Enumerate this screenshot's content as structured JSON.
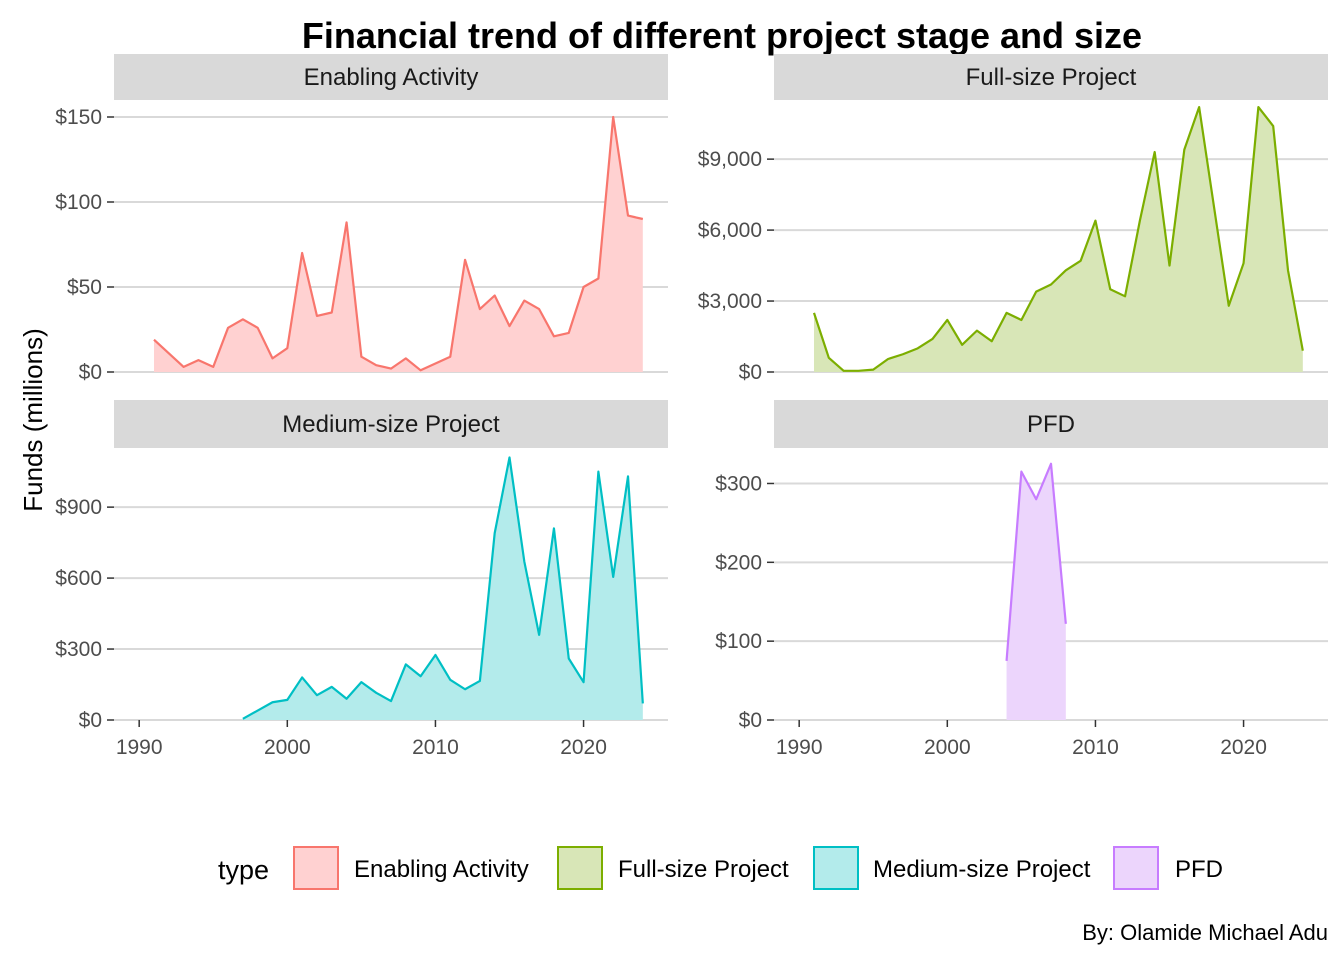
{
  "chart_data": {
    "type": "area",
    "title": "Financial trend of different project stage and size",
    "ylabel": "Funds (millions)",
    "caption": "By: Olamide Michael Adu",
    "legend_title": "type",
    "legend_position": "bottom",
    "grid": true,
    "x_ticks": [
      1990,
      2000,
      2010,
      2020
    ],
    "panels": [
      {
        "name": "Enabling Activity",
        "fill": "#ffd1d1",
        "line": "#f8766d",
        "ylim": [
          0,
          160
        ],
        "y_ticks": [
          0,
          50,
          100,
          150
        ],
        "y_tick_labels": [
          "$0",
          "$50",
          "$100",
          "$150"
        ],
        "x": [
          1991,
          1992,
          1993,
          1994,
          1995,
          1996,
          1997,
          1998,
          1999,
          2000,
          2001,
          2002,
          2003,
          2004,
          2005,
          2006,
          2007,
          2008,
          2009,
          2010,
          2011,
          2012,
          2013,
          2014,
          2015,
          2016,
          2017,
          2018,
          2019,
          2020,
          2021,
          2022,
          2023,
          2024
        ],
        "values": [
          19,
          11,
          3,
          7,
          3,
          26,
          31,
          26,
          8,
          14,
          70,
          33,
          35,
          88,
          9,
          4,
          2,
          8,
          1,
          5,
          9,
          66,
          37,
          45,
          27,
          42,
          37,
          21,
          23,
          50,
          55,
          150,
          92,
          90
        ]
      },
      {
        "name": "Full-size Project",
        "fill": "#d8e6b7",
        "line": "#7cae00",
        "ylim": [
          0,
          11500
        ],
        "y_ticks": [
          0,
          3000,
          6000,
          9000
        ],
        "y_tick_labels": [
          "$0",
          "$3,000",
          "$6,000",
          "$9,000"
        ],
        "x": [
          1991,
          1992,
          1993,
          1994,
          1995,
          1996,
          1997,
          1998,
          1999,
          2000,
          2001,
          2002,
          2003,
          2004,
          2005,
          2006,
          2007,
          2008,
          2009,
          2010,
          2011,
          2012,
          2013,
          2014,
          2015,
          2016,
          2017,
          2018,
          2019,
          2020,
          2021,
          2022,
          2023,
          2024
        ],
        "values": [
          2500,
          600,
          50,
          50,
          100,
          550,
          750,
          1000,
          1400,
          2200,
          1150,
          1750,
          1300,
          2500,
          2200,
          3400,
          3700,
          4300,
          4700,
          6400,
          3500,
          3200,
          6400,
          9300,
          4500,
          9400,
          11200,
          7000,
          2800,
          4600,
          11200,
          10400,
          4300,
          900
        ]
      },
      {
        "name": "Medium-size Project",
        "fill": "#b3ebeb",
        "line": "#00bfc4",
        "ylim": [
          0,
          1150
        ],
        "y_ticks": [
          0,
          300,
          600,
          900
        ],
        "y_tick_labels": [
          "$0",
          "$300",
          "$600",
          "$900"
        ],
        "x": [
          1997,
          1998,
          1999,
          2000,
          2001,
          2002,
          2003,
          2004,
          2005,
          2006,
          2007,
          2008,
          2009,
          2010,
          2011,
          2012,
          2013,
          2014,
          2015,
          2016,
          2017,
          2018,
          2019,
          2020,
          2021,
          2022,
          2023,
          2024
        ],
        "values": [
          5,
          40,
          75,
          85,
          180,
          105,
          140,
          90,
          160,
          115,
          80,
          235,
          185,
          275,
          170,
          130,
          165,
          790,
          1110,
          670,
          360,
          810,
          260,
          160,
          1050,
          605,
          1030,
          70
        ]
      },
      {
        "name": "PFD",
        "fill": "#ecd5fc",
        "line": "#c77cff",
        "ylim": [
          0,
          345
        ],
        "y_ticks": [
          0,
          100,
          200,
          300
        ],
        "y_tick_labels": [
          "$0",
          "$100",
          "$200",
          "$300"
        ],
        "x": [
          2004,
          2005,
          2006,
          2007,
          2008
        ],
        "values": [
          75,
          315,
          280,
          325,
          122
        ]
      }
    ]
  }
}
